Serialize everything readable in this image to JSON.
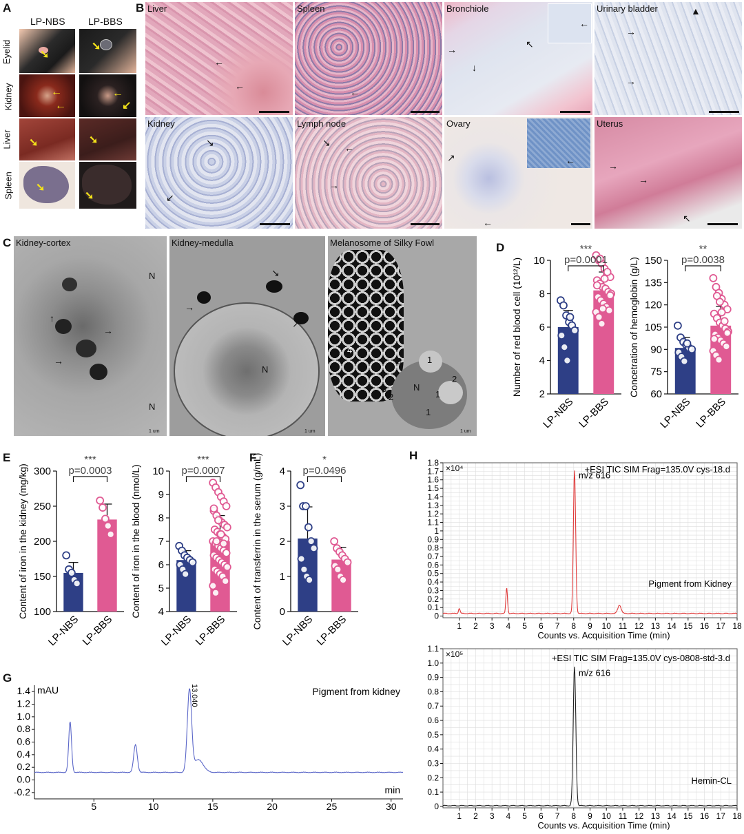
{
  "panels": {
    "A": {
      "letter": "A",
      "col_labels": [
        "LP-NBS",
        "LP-BBS"
      ],
      "row_labels": [
        "Eyelid",
        "Kidney",
        "Liver",
        "Spleen"
      ]
    },
    "B": {
      "letter": "B",
      "tiles": [
        "Liver",
        "Spleen",
        "Bronchiole",
        "Urinary bladder",
        "Kidney",
        "Lymph node",
        "Ovary",
        "Uterus"
      ]
    },
    "C": {
      "letter": "C",
      "tiles": [
        "Kidney-cortex",
        "Kidney-medulla",
        "Melanosome of Silky Fowl"
      ],
      "marks": [
        "N",
        "N",
        "N",
        "N",
        "1",
        "1",
        "1",
        "2",
        "2",
        "3",
        "3",
        "4"
      ],
      "scalebar_text": "1 um"
    },
    "D": {
      "letter": "D"
    },
    "E": {
      "letter": "E"
    },
    "F": {
      "letter": "F"
    },
    "G": {
      "letter": "G"
    },
    "H": {
      "letter": "H"
    }
  },
  "colors": {
    "nbs": "#2e3f86",
    "bbs": "#e05a93",
    "bbs_light": "#f2a3c4",
    "he_pink": "#e9b3c6",
    "ihc_blue": "#b8c4de",
    "em_gray": "#9a9a9a",
    "trace_red": "#e03a3a",
    "trace_black": "#222222",
    "trace_blue": "#5a66c8"
  },
  "icons": {
    "arrow": "arrow-icon",
    "yellow_arrow": "yellow-arrow-icon"
  },
  "chart_data": [
    {
      "id": "D1",
      "type": "bar",
      "categories": [
        "LP-NBS",
        "LP-BBS"
      ],
      "values": [
        6.0,
        8.2
      ],
      "errors": [
        1.0,
        1.1
      ],
      "ylabel": "Number of red blood cell (10¹²/L)",
      "ylim": [
        2,
        10
      ],
      "yticks": [
        2,
        4,
        6,
        8,
        10
      ],
      "pvalue": "p=0.0001",
      "stars": "***",
      "points": [
        [
          7.6,
          7.3,
          6.7,
          6.3,
          6.1,
          5.8,
          5.5,
          4.8,
          4.0,
          6.6
        ],
        [
          10.3,
          10.0,
          9.8,
          9.5,
          9.2,
          9.0,
          8.8,
          8.6,
          8.4,
          8.3,
          8.1,
          8.0,
          7.8,
          7.6,
          7.4,
          7.2,
          7.0,
          6.9,
          6.6,
          6.2,
          8.9,
          9.3,
          7.9,
          8.5,
          10.1,
          7.1
        ]
      ]
    },
    {
      "id": "D2",
      "type": "bar",
      "categories": [
        "LP-NBS",
        "LP-BBS"
      ],
      "values": [
        91,
        106
      ],
      "errors": [
        7,
        13
      ],
      "ylabel": "Concetration of hemoglobin (g/L)",
      "ylim": [
        60,
        150
      ],
      "yticks": [
        60,
        75,
        90,
        105,
        120,
        135,
        150
      ],
      "pvalue": "p=0.0038",
      "stars": "**",
      "points": [
        [
          106,
          98,
          95,
          93,
          91,
          90,
          88,
          85,
          82,
          94
        ],
        [
          138,
          132,
          128,
          124,
          120,
          117,
          114,
          111,
          108,
          106,
          104,
          102,
          100,
          98,
          96,
          94,
          92,
          89,
          86,
          83,
          115,
          109,
          101,
          97,
          126,
          122
        ]
      ]
    },
    {
      "id": "E1",
      "type": "bar",
      "categories": [
        "LP-NBS",
        "LP-BBS"
      ],
      "values": [
        155,
        231
      ],
      "errors": [
        15,
        22
      ],
      "ylabel": "Content of iron in the kidney (mg/kg)",
      "ylim": [
        100,
        300
      ],
      "yticks": [
        100,
        150,
        200,
        250,
        300
      ],
      "pvalue": "p=0.0003",
      "stars": "***",
      "points": [
        [
          180,
          160,
          155,
          145,
          140
        ],
        [
          258,
          248,
          232,
          222,
          210
        ]
      ]
    },
    {
      "id": "E2",
      "type": "bar",
      "categories": [
        "LP-NBS",
        "LP-BBS"
      ],
      "values": [
        6.2,
        7.0
      ],
      "errors": [
        0.4,
        1.1
      ],
      "ylabel": "Content of iron in the blood (nmol/L)",
      "ylim": [
        4,
        10
      ],
      "yticks": [
        4,
        5,
        6,
        7,
        8,
        9,
        10
      ],
      "pvalue": "p=0.0007",
      "stars": "***",
      "points": [
        [
          6.8,
          6.6,
          6.4,
          6.3,
          6.2,
          6.1,
          6.0,
          5.8,
          5.6
        ],
        [
          9.5,
          9.3,
          9.1,
          8.9,
          8.7,
          8.5,
          8.3,
          8.1,
          7.9,
          7.8,
          7.7,
          7.6,
          7.5,
          7.4,
          7.3,
          7.2,
          7.1,
          7.0,
          6.9,
          6.8,
          6.7,
          6.6,
          6.5,
          6.4,
          6.3,
          6.2,
          6.1,
          6.0,
          5.9,
          5.8,
          5.7,
          5.6,
          5.5,
          5.3,
          5.1,
          4.8,
          7.9,
          7.3,
          6.9,
          6.5,
          8.4,
          7.0
        ]
      ]
    },
    {
      "id": "F1",
      "type": "bar",
      "categories": [
        "LP-NBS",
        "LP-BBS"
      ],
      "values": [
        2.08,
        1.48
      ],
      "errors": [
        0.9,
        0.35
      ],
      "ylabel": "Content of transferrin in the serum (g/mL)",
      "ylim": [
        0,
        4
      ],
      "yticks": [
        0,
        1,
        2,
        3,
        4
      ],
      "pvalue": "p=0.0496",
      "stars": "*",
      "points": [
        [
          3.6,
          3.0,
          3.0,
          2.4,
          2.0,
          1.8,
          1.5,
          1.2,
          1.0,
          0.9
        ],
        [
          2.0,
          1.8,
          1.7,
          1.6,
          1.5,
          1.4,
          1.3,
          1.2,
          1.0,
          0.9
        ]
      ]
    },
    {
      "id": "G",
      "type": "line",
      "ylabel": "mAU",
      "xlabel": "min",
      "annotation": "Pigment from  kidney",
      "peak_label": "13.040",
      "xlim": [
        0,
        31
      ],
      "ylim": [
        -0.3,
        1.5
      ],
      "xticks": [
        5,
        10,
        15,
        20,
        25,
        30
      ],
      "yticks": [
        -0.2,
        0.0,
        0.2,
        0.4,
        0.6,
        0.8,
        1.0,
        1.2,
        1.4
      ],
      "ytick_labels": [
        "-0.2",
        "0.0",
        "0.2",
        "0.4",
        "0.6",
        "0.8",
        "1.0",
        "1.2",
        "1.4"
      ],
      "baseline": 0.12,
      "peaks": [
        [
          3.0,
          0.8,
          0.12
        ],
        [
          8.5,
          0.44,
          0.15
        ],
        [
          13.04,
          1.3,
          0.18
        ],
        [
          13.8,
          0.2,
          0.4
        ]
      ]
    },
    {
      "id": "H1",
      "type": "line",
      "title": "+ESI TIC  SIM  Frag=135.0V  cys-18.d",
      "multiplier": "×10⁴",
      "xlabel": "Counts vs. Acquisition Time (min)",
      "annotation": "Pigment from  Kidney",
      "peak_label": "m/z 616",
      "xlim": [
        0,
        18
      ],
      "ylim": [
        -0.02,
        1.8
      ],
      "xticks": [
        1,
        2,
        3,
        4,
        5,
        6,
        7,
        8,
        9,
        10,
        11,
        12,
        13,
        14,
        15,
        16,
        17,
        18
      ],
      "yticks": [
        0,
        0.1,
        0.2,
        0.3,
        0.4,
        0.5,
        0.6,
        0.7,
        0.8,
        0.9,
        1.0,
        1.1,
        1.2,
        1.3,
        1.4,
        1.5,
        1.6,
        1.7,
        1.8
      ],
      "ytick_labels": [
        "0",
        "0.1",
        "0.2",
        "0.3",
        "0.4",
        "0.5",
        "0.6",
        "0.7",
        "0.8",
        "0.9",
        "1",
        "1.1",
        "1.2",
        "1.3",
        "1.4",
        "1.5",
        "1.6",
        "1.7",
        "1.8"
      ],
      "baseline": 0.03,
      "peaks": [
        [
          3.9,
          0.3,
          0.05
        ],
        [
          8.05,
          1.68,
          0.07
        ],
        [
          10.8,
          0.1,
          0.1
        ],
        [
          1.0,
          0.06,
          0.05
        ]
      ]
    },
    {
      "id": "H2",
      "type": "line",
      "title": "+ESI TIC  SIM  Frag=135.0V  cys-0808-std-3.d",
      "multiplier": "×10⁵",
      "xlabel": "Counts vs. Acquisition Time (min)",
      "annotation": "Hemin-CL",
      "peak_label": "m/z 616",
      "xlim": [
        0,
        18
      ],
      "ylim": [
        -0.01,
        1.1
      ],
      "xticks": [
        1,
        2,
        3,
        4,
        5,
        6,
        7,
        8,
        9,
        10,
        11,
        12,
        13,
        14,
        15,
        16,
        17,
        18
      ],
      "yticks": [
        0,
        0.1,
        0.2,
        0.3,
        0.4,
        0.5,
        0.6,
        0.7,
        0.8,
        0.9,
        1.0,
        1.1
      ],
      "ytick_labels": [
        "0",
        "0.1",
        "0.2",
        "0.3",
        "0.4",
        "0.5",
        "0.6",
        "0.7",
        "0.8",
        "0.9",
        "1.0",
        "1.1"
      ],
      "baseline": 0.005,
      "peaks": [
        [
          8.05,
          0.97,
          0.08
        ]
      ]
    }
  ]
}
